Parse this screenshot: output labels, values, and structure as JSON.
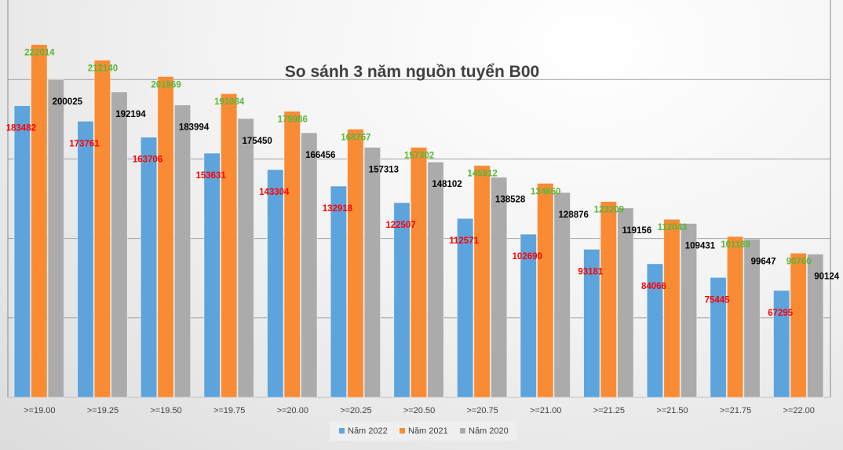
{
  "chart_data": {
    "type": "bar",
    "title": "So sánh 3 năm nguồn tuyển B00",
    "categories": [
      ">=19.00",
      ">=19.25",
      ">=19.50",
      ">=19.75",
      ">=20.00",
      ">=20.25",
      ">=20.50",
      ">=20.75",
      ">=21.00",
      ">=21.25",
      ">=21.50",
      ">=21.75",
      ">=22.00"
    ],
    "series": [
      {
        "name": "Năm 2022",
        "color": "#5ea4dc",
        "label_color": "#ff0000",
        "values": [
          183482,
          173761,
          163706,
          153631,
          143304,
          132918,
          122507,
          112571,
          102690,
          93181,
          84066,
          75445,
          67295
        ]
      },
      {
        "name": "Năm 2021",
        "color": "#f98b34",
        "label_color": "#5bb53a",
        "values": [
          222014,
          212140,
          201869,
          191084,
          179986,
          168767,
          157302,
          145912,
          134650,
          123209,
          112043,
          101189,
          90760
        ]
      },
      {
        "name": "Năm 2020",
        "color": "#ababab",
        "label_color": "#000000",
        "values": [
          200025,
          192194,
          183994,
          175450,
          166456,
          157313,
          148102,
          138528,
          128876,
          119156,
          109431,
          99647,
          90124
        ]
      }
    ],
    "ylim": [
      0,
      250000
    ],
    "grid": true,
    "legend": "bottom"
  }
}
